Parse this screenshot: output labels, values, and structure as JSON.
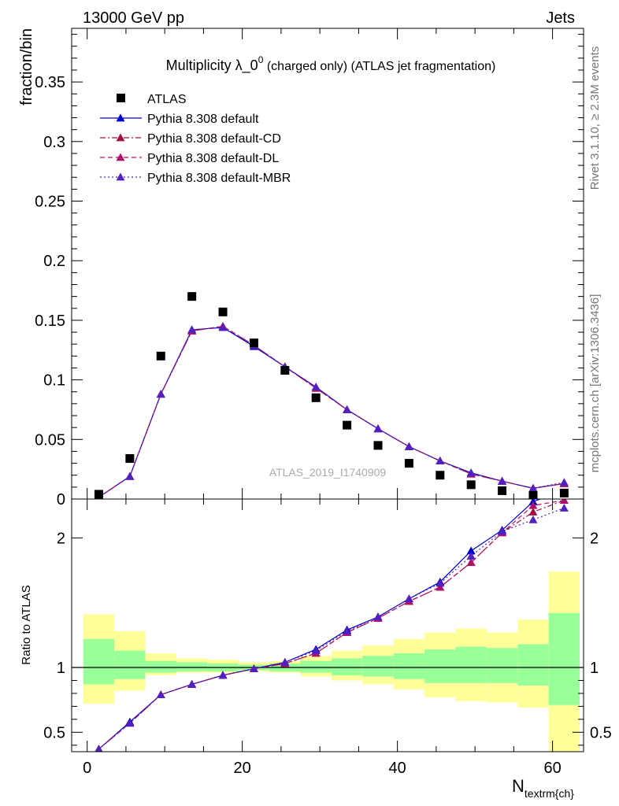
{
  "header": {
    "left": "13000 GeV pp",
    "right": "Jets"
  },
  "side_labels": {
    "rivet": "Rivet 3.1.10, ≥ 2.3M events",
    "mcplots": "mcplots.cern.ch [arXiv:1306.3436]"
  },
  "watermark": "ATLAS_2019_I1740909",
  "chart_data": [
    {
      "type": "scatter",
      "panel": "main",
      "title": "Multiplicity λ_0",
      "title_sup": "0",
      "title_suffix": " (charged only) (ATLAS jet fragmentation)",
      "xlabel": "N",
      "xlabel_sub": "textrm{ch}",
      "ylabel": "fraction/bin",
      "xlim": [
        -2,
        64
      ],
      "ylim": [
        0,
        0.395
      ],
      "xticks": [
        0,
        20,
        40,
        60
      ],
      "xtick_labels": [
        "0",
        "20",
        "40",
        "60"
      ],
      "yticks": [
        0,
        0.05,
        0.1,
        0.15,
        0.2,
        0.25,
        0.3,
        0.35
      ],
      "ytick_labels": [
        "0",
        "0.05",
        "0.1",
        "0.15",
        "0.2",
        "0.25",
        "0.3",
        "0.35"
      ],
      "legend_position": "top-left",
      "x": [
        1.5,
        5.5,
        9.5,
        13.5,
        17.5,
        21.5,
        25.5,
        29.5,
        33.5,
        37.5,
        41.5,
        45.5,
        49.5,
        53.5,
        57.5,
        61.5
      ],
      "series": [
        {
          "name": "ATLAS",
          "marker": "square",
          "color": "#000000",
          "line": "none",
          "values": [
            0.004,
            0.034,
            0.12,
            0.17,
            0.157,
            0.131,
            0.108,
            0.085,
            0.062,
            0.045,
            0.03,
            0.02,
            0.012,
            0.007,
            0.003,
            0.005
          ]
        },
        {
          "name": "Pythia 8.308 default",
          "marker": "triangle",
          "color": "#0000cc",
          "line": "solid",
          "values": [
            0.0015,
            0.019,
            0.088,
            0.142,
            0.144,
            0.128,
            0.111,
            0.094,
            0.075,
            0.059,
            0.044,
            0.032,
            0.022,
            0.015,
            0.009,
            0.013
          ]
        },
        {
          "name": "Pythia 8.308 default-CD",
          "marker": "triangle",
          "color": "#a01040",
          "line": "dashdot",
          "values": [
            0.0015,
            0.019,
            0.088,
            0.141,
            0.145,
            0.129,
            0.111,
            0.093,
            0.075,
            0.059,
            0.044,
            0.032,
            0.021,
            0.015,
            0.009,
            0.013
          ]
        },
        {
          "name": "Pythia 8.308 default-DL",
          "marker": "triangle",
          "color": "#b0106a",
          "line": "dashed",
          "values": [
            0.0015,
            0.019,
            0.088,
            0.141,
            0.145,
            0.129,
            0.111,
            0.093,
            0.075,
            0.059,
            0.044,
            0.032,
            0.021,
            0.015,
            0.009,
            0.013
          ]
        },
        {
          "name": "Pythia 8.308 default-MBR",
          "marker": "triangle",
          "color": "#5020c0",
          "line": "dotted",
          "values": [
            0.0015,
            0.019,
            0.088,
            0.142,
            0.144,
            0.129,
            0.111,
            0.094,
            0.075,
            0.059,
            0.044,
            0.032,
            0.022,
            0.015,
            0.009,
            0.014
          ]
        }
      ]
    },
    {
      "type": "line",
      "panel": "ratio",
      "ylabel": "Ratio to ATLAS",
      "xlim": [
        -2,
        64
      ],
      "ylim": [
        0.35,
        2.3
      ],
      "yticks": [
        0.5,
        1,
        2
      ],
      "ytick_labels": [
        "0.5",
        "1",
        "2"
      ],
      "reference_line": 1,
      "bands": {
        "x_edges": [
          -0.5,
          3.5,
          7.5,
          11.5,
          15.5,
          19.5,
          23.5,
          27.5,
          31.5,
          35.5,
          39.5,
          43.5,
          47.5,
          51.5,
          55.5,
          59.5,
          63.5
        ],
        "inner_color": "#99ff99",
        "outer_color": "#ffff99",
        "inner_lo": [
          0.87,
          0.91,
          0.96,
          0.97,
          0.97,
          0.98,
          0.97,
          0.96,
          0.94,
          0.93,
          0.91,
          0.88,
          0.88,
          0.88,
          0.86,
          0.71
        ],
        "inner_hi": [
          1.22,
          1.13,
          1.05,
          1.04,
          1.03,
          1.02,
          1.03,
          1.05,
          1.07,
          1.09,
          1.11,
          1.14,
          1.16,
          1.15,
          1.18,
          1.42
        ],
        "outer_lo": [
          0.72,
          0.82,
          0.94,
          0.96,
          0.96,
          0.97,
          0.96,
          0.93,
          0.9,
          0.87,
          0.83,
          0.77,
          0.74,
          0.73,
          0.69,
          0.3
        ],
        "outer_hi": [
          1.41,
          1.28,
          1.11,
          1.07,
          1.06,
          1.04,
          1.05,
          1.09,
          1.13,
          1.17,
          1.22,
          1.27,
          1.3,
          1.27,
          1.37,
          1.74
        ]
      },
      "x": [
        1.5,
        5.5,
        9.5,
        13.5,
        17.5,
        21.5,
        25.5,
        29.5,
        33.5,
        37.5,
        41.5,
        45.5,
        49.5,
        53.5,
        57.5,
        61.5
      ],
      "series": [
        {
          "name": "Pythia 8.308 default",
          "color": "#0000cc",
          "line": "solid",
          "values": [
            0.37,
            0.58,
            0.79,
            0.87,
            0.94,
            0.99,
            1.04,
            1.14,
            1.29,
            1.39,
            1.53,
            1.66,
            1.9,
            2.06,
            2.28,
            2.37
          ]
        },
        {
          "name": "Pythia 8.308 default-CD",
          "color": "#a01040",
          "line": "dashdot",
          "values": [
            0.37,
            0.57,
            0.79,
            0.87,
            0.94,
            0.99,
            1.03,
            1.11,
            1.27,
            1.38,
            1.51,
            1.62,
            1.81,
            2.04,
            2.2,
            2.29
          ]
        },
        {
          "name": "Pythia 8.308 default-DL",
          "color": "#b0106a",
          "line": "dashed",
          "values": [
            0.37,
            0.57,
            0.79,
            0.87,
            0.94,
            0.99,
            1.03,
            1.11,
            1.27,
            1.38,
            1.51,
            1.62,
            1.81,
            2.04,
            2.25,
            2.29
          ]
        },
        {
          "name": "Pythia 8.308 default-MBR",
          "color": "#5020c0",
          "line": "dotted",
          "values": [
            0.37,
            0.57,
            0.79,
            0.87,
            0.94,
            0.99,
            1.04,
            1.13,
            1.28,
            1.39,
            1.53,
            1.65,
            1.86,
            2.05,
            2.14,
            2.23
          ]
        }
      ]
    }
  ]
}
